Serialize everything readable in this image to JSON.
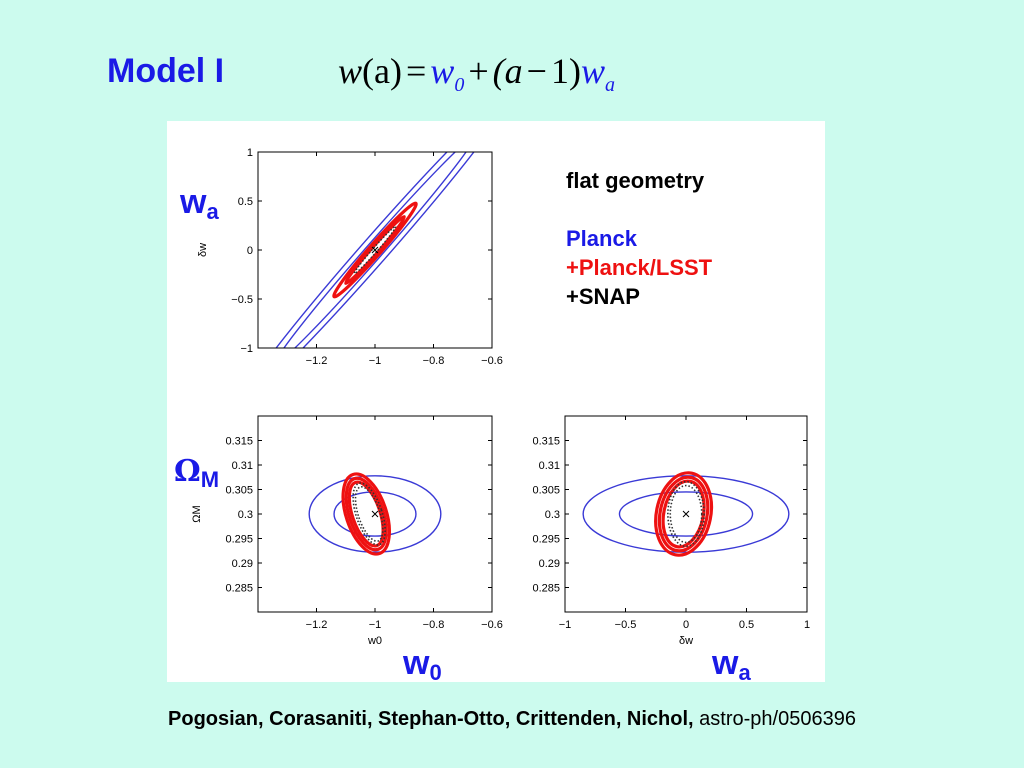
{
  "slide": {
    "title": "Model I",
    "equation": {
      "lhs_w": "w",
      "lhs_arg": "(a)",
      "eq": "=",
      "w0_base": "w",
      "w0_sub": "0",
      "plus": "+",
      "paren": "(a",
      "minus": "−",
      "one": "1)",
      "wa_base": "w",
      "wa_sub": "a"
    },
    "legend": {
      "geometry": "flat geometry",
      "planck": "Planck",
      "planck_lsst": "+Planck/LSST",
      "snap": "+SNAP"
    },
    "big_labels": {
      "wa_top": "w",
      "wa_top_sub": "a",
      "omega": "Ω",
      "omega_sub": "M",
      "w0_bottom": "w",
      "w0_bottom_sub": "0",
      "wa_bottom": "w",
      "wa_bottom_sub": "a"
    },
    "citation": {
      "authors": "Pogosian, Corasaniti, Stephan-Otto, Crittenden, Nichol,",
      "ref": "astro-ph/0506396"
    }
  },
  "colors": {
    "background": "#ccfbee",
    "planck": "#3a3ad6",
    "lsst": "#ee1111",
    "snap": "#333333",
    "accent": "#1a1ae6"
  },
  "chart_data": [
    {
      "type": "scatter",
      "xlabel": "",
      "ylabel": "δw",
      "xlim": [
        -1.4,
        -0.6
      ],
      "ylim": [
        -1,
        1
      ],
      "xticks": [
        "−1.2",
        "−1",
        "−0.8",
        "−0.6"
      ],
      "xtick_values": [
        -1.2,
        -1.0,
        -0.8,
        -0.6
      ],
      "yticks": [
        "1",
        "0.5",
        "0",
        "−0.5",
        "−1"
      ],
      "ytick_values": [
        1,
        0.5,
        0,
        -0.5,
        -1
      ],
      "center": [
        -1,
        0
      ],
      "ellipses": [
        {
          "group": "planck",
          "cx": -1,
          "cy": 0,
          "rx": 0.34,
          "ry": 0.028,
          "angle_data": [
            1,
            3.4
          ]
        },
        {
          "group": "planck",
          "cx": -1,
          "cy": 0,
          "rx": 0.46,
          "ry": 0.045,
          "angle_data": [
            1,
            3.4
          ]
        },
        {
          "group": "lsst",
          "cx": -1,
          "cy": 0,
          "rx": 0.1,
          "ry": 0.012,
          "angle_data": [
            1,
            3.4
          ]
        },
        {
          "group": "lsst",
          "cx": -1,
          "cy": 0,
          "rx": 0.14,
          "ry": 0.02,
          "angle_data": [
            1,
            3.4
          ]
        },
        {
          "group": "snap",
          "cx": -1,
          "cy": 0,
          "rx": 0.07,
          "ry": 0.008,
          "angle_data": [
            1,
            3.4
          ]
        }
      ]
    },
    {
      "type": "scatter",
      "xlabel": "w0",
      "ylabel": "ΩM",
      "xlim": [
        -1.4,
        -0.6
      ],
      "ylim": [
        0.28,
        0.32
      ],
      "xticks": [
        "−1.2",
        "−1",
        "−0.8",
        "−0.6"
      ],
      "xtick_values": [
        -1.2,
        -1.0,
        -0.8,
        -0.6
      ],
      "yticks": [
        "0.315",
        "0.31",
        "0.305",
        "0.3",
        "0.295",
        "0.29",
        "0.285"
      ],
      "ytick_values": [
        0.315,
        0.31,
        0.305,
        0.3,
        0.295,
        0.29,
        0.285
      ],
      "center": [
        -1,
        0.3
      ],
      "ellipses": [
        {
          "group": "planck",
          "cx": -1,
          "cy": 0.3,
          "rx": 0.14,
          "ry": 0.0045,
          "angle_data": [
            1,
            0
          ]
        },
        {
          "group": "planck",
          "cx": -1,
          "cy": 0.3,
          "rx": 0.225,
          "ry": 0.0078,
          "angle_data": [
            1,
            0
          ]
        },
        {
          "group": "lsst",
          "cx": -1.03,
          "cy": 0.3,
          "rx": 0.045,
          "ry": 0.0068,
          "angle_data": [
            1,
            0.02
          ]
        },
        {
          "group": "lsst",
          "cx": -1.03,
          "cy": 0.3,
          "rx": 0.055,
          "ry": 0.0076,
          "angle_data": [
            1,
            0.02
          ]
        },
        {
          "group": "lsst",
          "cx": -1.03,
          "cy": 0.3,
          "rx": 0.065,
          "ry": 0.0085,
          "angle_data": [
            1,
            0.02
          ]
        },
        {
          "group": "snap",
          "cx": -1.02,
          "cy": 0.3,
          "rx": 0.035,
          "ry": 0.0058,
          "angle_data": [
            1,
            0.02
          ]
        },
        {
          "group": "snap",
          "cx": -1.02,
          "cy": 0.3,
          "rx": 0.042,
          "ry": 0.0066,
          "angle_data": [
            1,
            0.02
          ]
        }
      ]
    },
    {
      "type": "scatter",
      "xlabel": "δw",
      "ylabel": "",
      "xlim": [
        -1,
        1
      ],
      "ylim": [
        0.28,
        0.32
      ],
      "xticks": [
        "−1",
        "−0.5",
        "0",
        "0.5",
        "1"
      ],
      "xtick_values": [
        -1,
        -0.5,
        0,
        0.5,
        1
      ],
      "yticks": [
        "0.315",
        "0.31",
        "0.305",
        "0.3",
        "0.295",
        "0.29",
        "0.285"
      ],
      "ytick_values": [
        0.315,
        0.31,
        0.305,
        0.3,
        0.295,
        0.29,
        0.285
      ],
      "center": [
        0,
        0.3
      ],
      "ellipses": [
        {
          "group": "planck",
          "cx": 0,
          "cy": 0.3,
          "rx": 0.55,
          "ry": 0.0045,
          "angle_data": [
            1,
            0
          ]
        },
        {
          "group": "planck",
          "cx": 0,
          "cy": 0.3,
          "rx": 0.85,
          "ry": 0.0078,
          "angle_data": [
            1,
            0
          ]
        },
        {
          "group": "lsst",
          "cx": -0.02,
          "cy": 0.3,
          "rx": 0.16,
          "ry": 0.0068,
          "angle_data": [
            1,
            -0.005
          ]
        },
        {
          "group": "lsst",
          "cx": -0.02,
          "cy": 0.3,
          "rx": 0.19,
          "ry": 0.0076,
          "angle_data": [
            1,
            -0.005
          ]
        },
        {
          "group": "lsst",
          "cx": -0.02,
          "cy": 0.3,
          "rx": 0.22,
          "ry": 0.0085,
          "angle_data": [
            1,
            -0.005
          ]
        },
        {
          "group": "snap",
          "cx": 0,
          "cy": 0.3,
          "rx": 0.13,
          "ry": 0.0058,
          "angle_data": [
            1,
            0
          ]
        },
        {
          "group": "snap",
          "cx": 0,
          "cy": 0.3,
          "rx": 0.15,
          "ry": 0.0066,
          "angle_data": [
            1,
            0
          ]
        }
      ]
    }
  ]
}
